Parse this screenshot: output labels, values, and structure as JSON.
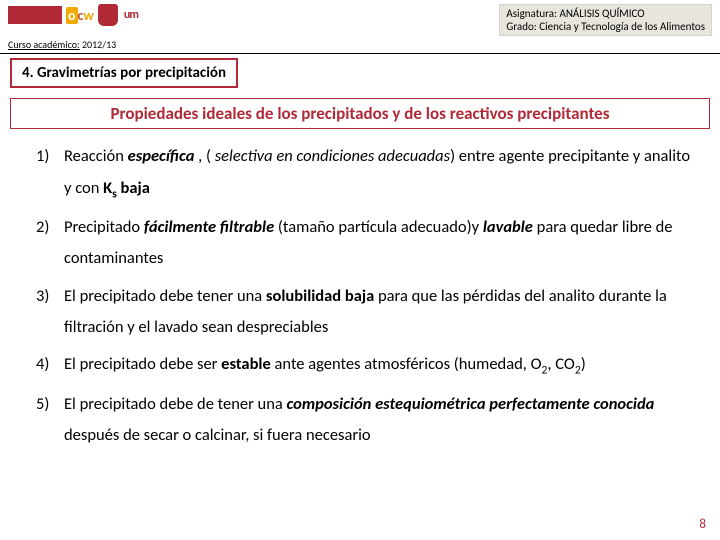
{
  "colors": {
    "accent": "#b02a37",
    "header_bg": "#e8e6dc",
    "header_border": "#d6d4c8",
    "text": "#000000",
    "bg": "#ffffff"
  },
  "header": {
    "asignatura_label": "Asignatura: ANÁLISIS QUÍMICO",
    "grado_label": "Grado: Ciencia y Tecnología de los Alimentos",
    "curso_label": "Curso académico:",
    "curso_year": "2012/13"
  },
  "section_tab": "4. Gravimetrías por precipitación",
  "wide_title": "Propiedades ideales de los precipitados y de los reactivos precipitantes",
  "items": [
    {
      "num": "1)",
      "segments": [
        {
          "t": "Reacción",
          "cls": ""
        },
        {
          "t": " específica",
          "cls": "bi"
        },
        {
          "t": " , ( ",
          "cls": ""
        },
        {
          "t": "selectiva en condiciones adecuadas",
          "cls": "i"
        },
        {
          "t": ") entre agente precipitante y analito y con ",
          "cls": ""
        },
        {
          "t": "K",
          "cls": "b"
        },
        {
          "t": "s",
          "cls": "b",
          "sub": true
        },
        {
          "t": " baja",
          "cls": "b"
        }
      ]
    },
    {
      "num": "2)",
      "segments": [
        {
          "t": "Precipitado ",
          "cls": ""
        },
        {
          "t": "fácilmente filtrable",
          "cls": "bi"
        },
        {
          "t": " (tamaño partícula adecuado)y ",
          "cls": ""
        },
        {
          "t": "lavable",
          "cls": "bi"
        },
        {
          "t": " para quedar libre de contaminantes",
          "cls": ""
        }
      ]
    },
    {
      "num": "3)",
      "segments": [
        {
          "t": "El precipitado debe tener una ",
          "cls": ""
        },
        {
          "t": "solubilidad baja",
          "cls": "b"
        },
        {
          "t": " para que las pérdidas del analito durante la filtración y el lavado sean despreciables",
          "cls": ""
        }
      ]
    },
    {
      "num": "4)",
      "segments": [
        {
          "t": "El precipitado debe ser ",
          "cls": ""
        },
        {
          "t": "estable ",
          "cls": "b"
        },
        {
          "t": "ante agentes atmosféricos (humedad, O",
          "cls": ""
        },
        {
          "t": "2",
          "cls": "",
          "sub": true
        },
        {
          "t": ", CO",
          "cls": ""
        },
        {
          "t": "2",
          "cls": "",
          "sub": true
        },
        {
          "t": ")",
          "cls": ""
        }
      ]
    },
    {
      "num": "5)",
      "segments": [
        {
          "t": "El precipitado debe de tener una ",
          "cls": ""
        },
        {
          "t": "composición estequiométrica perfectamente conocida",
          "cls": "bi"
        },
        {
          "t": " después de secar o calcinar, si fuera necesario",
          "cls": ""
        }
      ]
    }
  ],
  "page_number": "8",
  "logos": {
    "ocw": {
      "o": "o",
      "c": "c",
      "w": "w"
    },
    "um_text": "um"
  }
}
